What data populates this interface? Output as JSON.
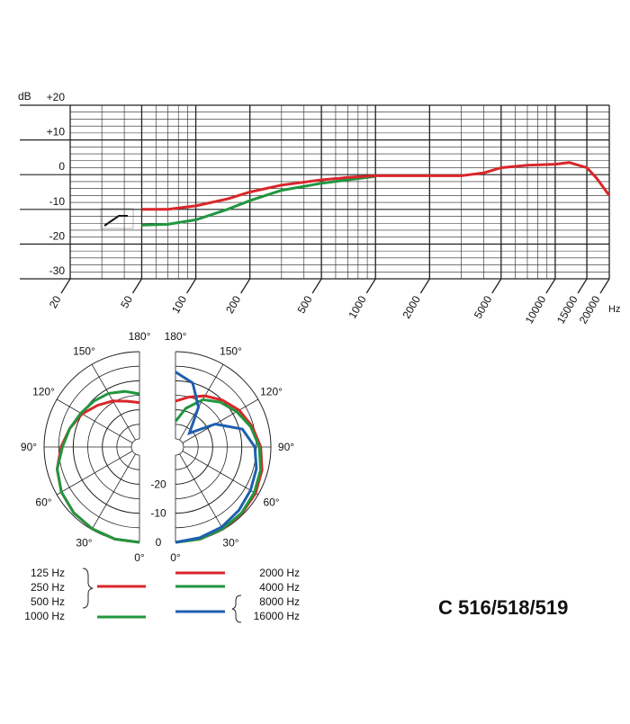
{
  "chart_data": [
    {
      "type": "line",
      "xscale": "log",
      "ylabel": "dB",
      "xlabel": "Hz",
      "xlim": [
        20,
        20000
      ],
      "ylim": [
        -30,
        20
      ],
      "xticks": [
        20,
        50,
        100,
        200,
        500,
        1000,
        2000,
        5000,
        10000,
        15000,
        20000
      ],
      "xminor": [
        30,
        40,
        60,
        70,
        80,
        90,
        300,
        400,
        600,
        700,
        800,
        900,
        3000,
        4000,
        6000,
        7000,
        8000,
        9000
      ],
      "yticks": [
        {
          "value": 20,
          "label": "+20"
        },
        {
          "value": 10,
          "label": "+10"
        },
        0,
        -10,
        -20,
        -30
      ],
      "yminor": [
        18,
        16,
        14,
        12,
        8,
        6,
        4,
        2,
        -2,
        -4,
        -6,
        -8,
        -12,
        -14,
        -16,
        -18,
        -22,
        -24,
        -26,
        -28
      ],
      "series": [
        {
          "color": "#21963f",
          "x": [
            50,
            70,
            100,
            150,
            200,
            300,
            500,
            700,
            1000
          ],
          "values": [
            -14.5,
            -14.3,
            -13,
            -10,
            -7.5,
            -4.5,
            -2.5,
            -1.5,
            -0.5
          ]
        },
        {
          "color": "#d9262a",
          "x": [
            50,
            70,
            100,
            150,
            200,
            300,
            500,
            700,
            1000,
            2000,
            3000,
            4000,
            5000,
            7000,
            10000,
            12000,
            15000,
            17000,
            20000
          ],
          "values": [
            -10,
            -10,
            -9,
            -7,
            -5,
            -3,
            -1.5,
            -0.8,
            -0.3,
            -0.3,
            -0.3,
            0.5,
            2,
            2.7,
            3,
            3.5,
            2,
            -1,
            -6
          ]
        }
      ]
    },
    {
      "type": "polar",
      "annotation": "C 516/518/519",
      "rlim": [
        -30,
        0
      ],
      "rticks": [
        -20,
        -10,
        0
      ],
      "rminor": [
        -30,
        -25,
        -15,
        -5
      ],
      "theta": [
        0,
        15,
        30,
        45,
        60,
        75,
        90,
        105,
        120,
        135,
        150,
        165,
        180
      ],
      "thetaticks": [
        {
          "value": 0,
          "label": "0°"
        },
        {
          "value": 30,
          "label": "30°"
        },
        {
          "value": 60,
          "label": "60°"
        },
        {
          "value": 90,
          "label": "90°"
        },
        {
          "value": 120,
          "label": "120°"
        },
        {
          "value": 150,
          "label": "150°"
        },
        {
          "value": 180,
          "label": "180°"
        }
      ],
      "series": [
        {
          "name": [
            "125 Hz",
            "250 Hz",
            "500 Hz"
          ],
          "side": "left",
          "color": "#d9262a",
          "values": [
            0,
            0,
            -0.3,
            -0.8,
            -1.8,
            -3.5,
            -5.8,
            -8,
            -10,
            -12.5,
            -14.5,
            -16.5,
            -17.5
          ]
        },
        {
          "name": [
            "1000 Hz"
          ],
          "side": "left",
          "color": "#21963f",
          "values": [
            0,
            0,
            -0.3,
            -0.8,
            -1.8,
            -3.5,
            -6.3,
            -8,
            -9.5,
            -10.5,
            -11.5,
            -13,
            -14.5
          ]
        },
        {
          "name": [
            "2000 Hz"
          ],
          "side": "right",
          "color": "#d9262a",
          "values": [
            0,
            0,
            -0.2,
            -0.5,
            -1,
            -2,
            -3.5,
            -5.5,
            -7.5,
            -10,
            -12.5,
            -15,
            -17
          ]
        },
        {
          "name": [
            "4000 Hz"
          ],
          "side": "right",
          "color": "#21963f",
          "values": [
            0,
            0,
            -0.3,
            -0.7,
            -1.5,
            -2.5,
            -4,
            -6,
            -8.5,
            -11,
            -14,
            -19,
            -24
          ]
        },
        {
          "name": [
            "8000 Hz",
            "16000 Hz"
          ],
          "side": "right",
          "color": "#1f5fb0",
          "values": [
            0,
            -0.5,
            -1,
            -2,
            -3,
            -4,
            -5.5,
            -9,
            -17,
            -26,
            -17,
            -10,
            -7
          ]
        }
      ]
    }
  ]
}
